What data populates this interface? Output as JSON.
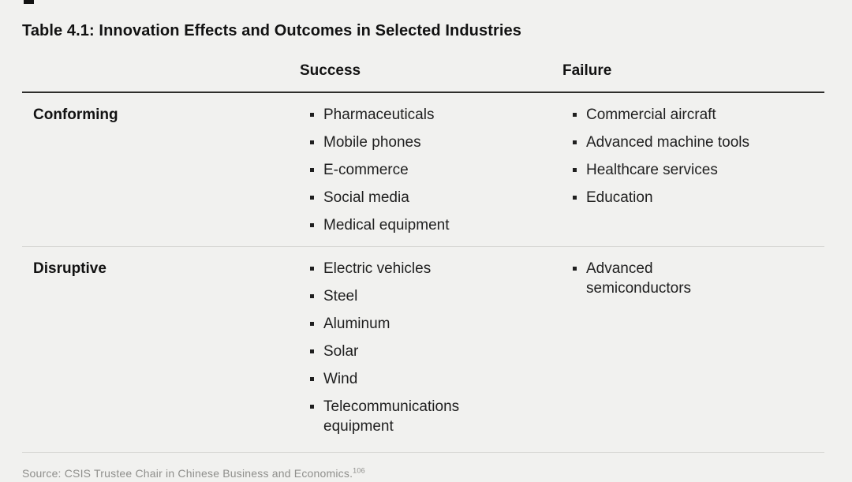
{
  "title": "Table 4.1: Innovation Effects and Outcomes in Selected Industries",
  "table": {
    "columns": {
      "success": "Success",
      "failure": "Failure"
    },
    "rows": [
      {
        "label": "Conforming",
        "success": [
          "Pharmaceuticals",
          "Mobile phones",
          "E-commerce",
          "Social media",
          "Medical equipment"
        ],
        "failure": [
          "Commercial aircraft",
          "Advanced machine tools",
          "Healthcare services",
          "Education"
        ]
      },
      {
        "label": "Disruptive",
        "success": [
          "Electric vehicles",
          "Steel",
          "Aluminum",
          "Solar",
          "Wind",
          "Telecommunications\nequipment"
        ],
        "failure": [
          "Advanced\nsemiconductors"
        ]
      }
    ]
  },
  "source": {
    "text": "Source: CSIS Trustee Chair in Chinese Business and Economics.",
    "footnote": "106"
  },
  "colors": {
    "background": "#f1f1ef",
    "text": "#1f1f1f",
    "heading": "#121212",
    "rule_dark": "#2d2d2b",
    "rule_light": "#d8d8d5",
    "source_text": "#8f8f8c"
  }
}
